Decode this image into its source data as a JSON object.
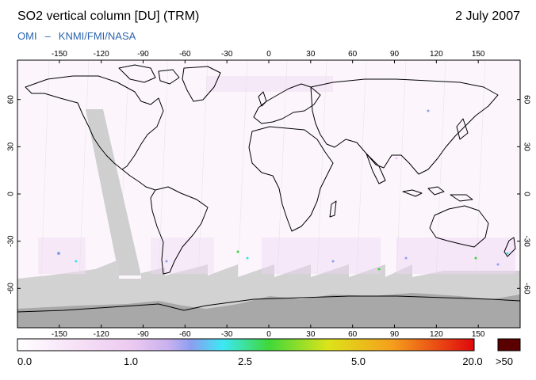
{
  "header": {
    "title": "SO2 vertical column [DU] (TRM)",
    "date": "2 July 2007",
    "credit_product": "OMI",
    "credit_dash": "–",
    "credit_institutes": "KNMI/FMI/NASA"
  },
  "map": {
    "lon_ticks_top": [
      "-150",
      "-120",
      "-90",
      "-60",
      "-30",
      "0",
      "30",
      "60",
      "90",
      "120",
      "150"
    ],
    "lon_ticks_bottom": [
      "-150",
      "-120",
      "-90",
      "-60",
      "-30",
      "0",
      "30",
      "60",
      "90",
      "120",
      "150"
    ],
    "lat_ticks_left": [
      "60",
      "30",
      "0",
      "-30",
      "-60"
    ],
    "lat_ticks_right": [
      "60",
      "30",
      "0",
      "-30",
      "-60"
    ],
    "colors": {
      "no_data": "#cfcfcf",
      "polar_night": "#a9a9a9",
      "coastline": "#000000",
      "background_low": "#fbf3fb"
    }
  },
  "colorbar": {
    "labels": [
      "0.0",
      "1.0",
      "2.5",
      "5.0",
      "20.0",
      ">50"
    ],
    "overflow_color": "#5a0000",
    "stops": [
      "#ffffff",
      "#f7d8f7",
      "#e8b8ee",
      "#8f9ff0",
      "#2fe6f5",
      "#3ad33a",
      "#d8e21a",
      "#f7a21a",
      "#f04a1a",
      "#e00d12"
    ]
  }
}
